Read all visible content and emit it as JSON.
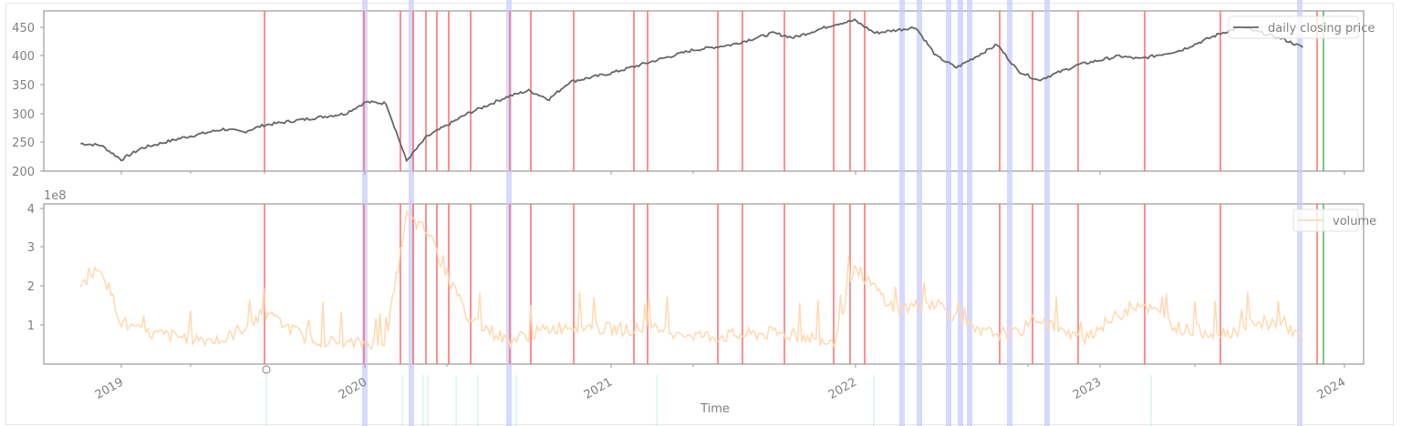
{
  "chart_data": [
    {
      "type": "line",
      "title": "",
      "xlabel": "",
      "ylabel": "",
      "ylim": [
        200,
        470
      ],
      "yticks": [
        200,
        250,
        300,
        350,
        400,
        450
      ],
      "legend": {
        "label": "daily closing price",
        "position": "upper right"
      },
      "series": [
        {
          "name": "daily closing price",
          "color": "#666666",
          "x": [
            "2018-11",
            "2018-12",
            "2019-01",
            "2019-02",
            "2019-04",
            "2019-06",
            "2019-07",
            "2019-08",
            "2019-10",
            "2019-12",
            "2020-01",
            "2020-02",
            "2020-03",
            "2020-04",
            "2020-06",
            "2020-08",
            "2020-09",
            "2020-10",
            "2020-11",
            "2021-01",
            "2021-03",
            "2021-05",
            "2021-07",
            "2021-09",
            "2021-10",
            "2021-12",
            "2022-01",
            "2022-02",
            "2022-04",
            "2022-05",
            "2022-06",
            "2022-08",
            "2022-09",
            "2022-10",
            "2022-12",
            "2023-02",
            "2023-03",
            "2023-05",
            "2023-07",
            "2023-08",
            "2023-10",
            "2023-11"
          ],
          "values": [
            248,
            245,
            220,
            240,
            258,
            273,
            268,
            280,
            290,
            300,
            320,
            318,
            218,
            260,
            300,
            330,
            340,
            325,
            355,
            370,
            390,
            410,
            420,
            440,
            432,
            455,
            462,
            440,
            450,
            400,
            380,
            420,
            375,
            358,
            385,
            400,
            395,
            410,
            440,
            450,
            430,
            415
          ]
        }
      ]
    },
    {
      "type": "line",
      "title": "",
      "xlabel": "Time",
      "ylabel": "",
      "y_scale_label": "1e8",
      "ylim": [
        0,
        4.1
      ],
      "yticks": [
        1,
        2,
        3,
        4
      ],
      "xticks": [
        "2019",
        "2020",
        "2021",
        "2022",
        "2023",
        "2024"
      ],
      "legend": {
        "label": "volume",
        "position": "upper right"
      },
      "series": [
        {
          "name": "volume",
          "color": "#ffd9b0",
          "x": [
            "2018-11",
            "2018-12",
            "2019-01",
            "2019-02",
            "2019-04",
            "2019-06",
            "2019-08",
            "2019-10",
            "2019-12",
            "2020-02",
            "2020-03",
            "2020-04",
            "2020-06",
            "2020-08",
            "2020-10",
            "2020-11",
            "2021-01",
            "2021-03",
            "2021-06",
            "2021-09",
            "2021-12",
            "2022-01",
            "2022-03",
            "2022-05",
            "2022-07",
            "2022-09",
            "2022-10",
            "2022-12",
            "2023-03",
            "2023-05",
            "2023-07",
            "2023-10",
            "2023-11"
          ],
          "values": [
            2.0,
            2.5,
            1.1,
            0.8,
            0.7,
            0.6,
            1.3,
            0.7,
            0.5,
            0.6,
            3.8,
            3.4,
            1.2,
            0.6,
            0.9,
            1.0,
            0.9,
            0.9,
            0.7,
            0.8,
            0.6,
            2.5,
            1.4,
            1.6,
            0.8,
            0.8,
            1.2,
            0.6,
            1.6,
            0.9,
            0.8,
            1.1,
            0.6
          ]
        }
      ]
    }
  ],
  "axes": {
    "top": {
      "yticks": [
        "200",
        "250",
        "300",
        "350",
        "400",
        "450"
      ]
    },
    "bottom": {
      "yticks": [
        "1",
        "2",
        "3",
        "4"
      ],
      "offset_label": "1e8"
    },
    "xticks": [
      "2019",
      "2020",
      "2021",
      "2022",
      "2023",
      "2024"
    ],
    "xlabel": "Time"
  },
  "legend": {
    "top_label": "daily closing price",
    "bottom_label": "volume"
  },
  "markers": {
    "red_color": "#ff6b6b",
    "blue_color": "#c8c8ff",
    "green_color": "#5cb85c",
    "teal_color": "#c8eee0",
    "red_dates_count": 25,
    "blue_bands_count": 11,
    "green_dates_count": 1
  }
}
